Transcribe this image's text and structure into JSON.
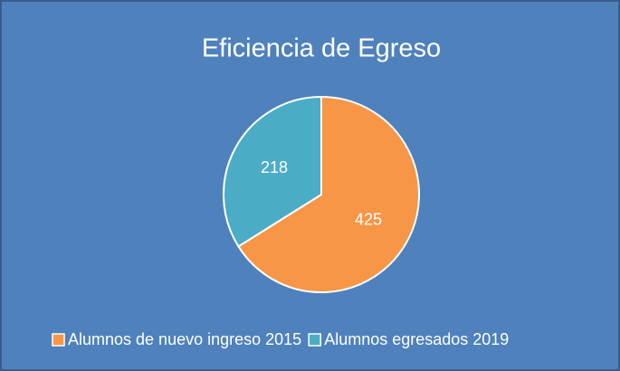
{
  "chart_data": {
    "type": "pie",
    "title": "Eficiencia de Egreso",
    "categories": [
      "Alumnos de nuevo ingreso 2015",
      "Alumnos egresados 2019"
    ],
    "values": [
      425,
      218
    ],
    "colors": [
      "#f79646",
      "#4bacc6"
    ],
    "legend": "bottom"
  }
}
